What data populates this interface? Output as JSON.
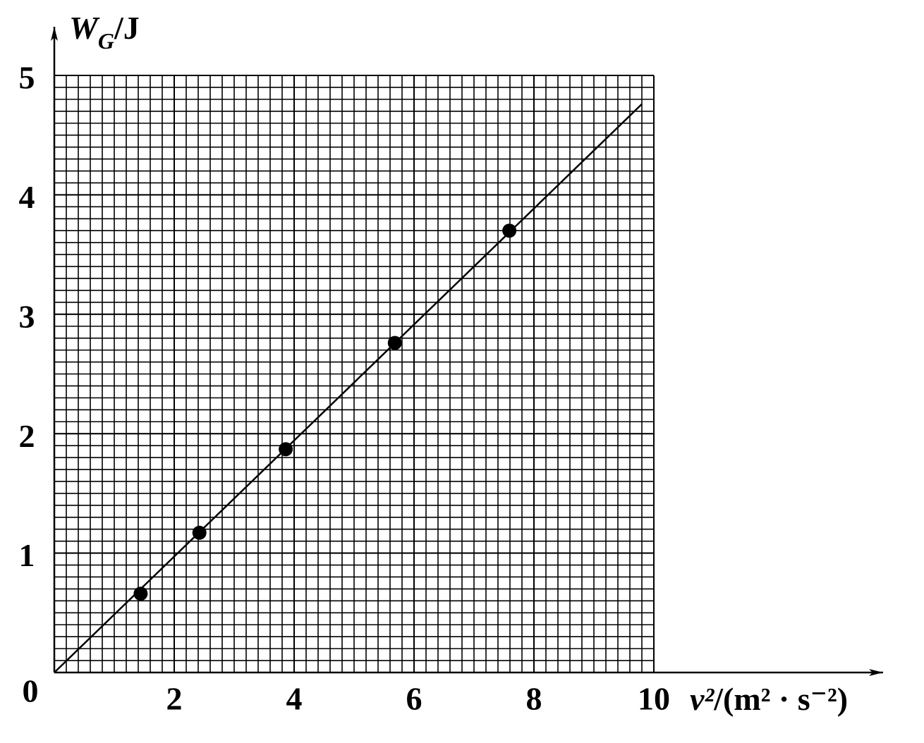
{
  "chart_data": {
    "type": "scatter",
    "y_label": {
      "symbol": "W",
      "subscript": "G",
      "unit": "/J"
    },
    "x_label": {
      "symbol": "v²",
      "unit": "/(m² · s⁻²)"
    },
    "x": [
      1.44,
      2.42,
      3.86,
      5.68,
      7.59
    ],
    "values": [
      0.66,
      1.17,
      1.87,
      2.76,
      3.7
    ],
    "color": "#000000",
    "fit_line": {
      "x": [
        0,
        9.8
      ],
      "values": [
        0,
        4.76
      ]
    },
    "xlim": [
      0,
      10
    ],
    "ylim": [
      0,
      5
    ],
    "xticks": [
      0,
      2,
      4,
      6,
      8,
      10
    ],
    "yticks": [
      1,
      2,
      3,
      4,
      5
    ],
    "grid": true,
    "minor_grid": true
  }
}
